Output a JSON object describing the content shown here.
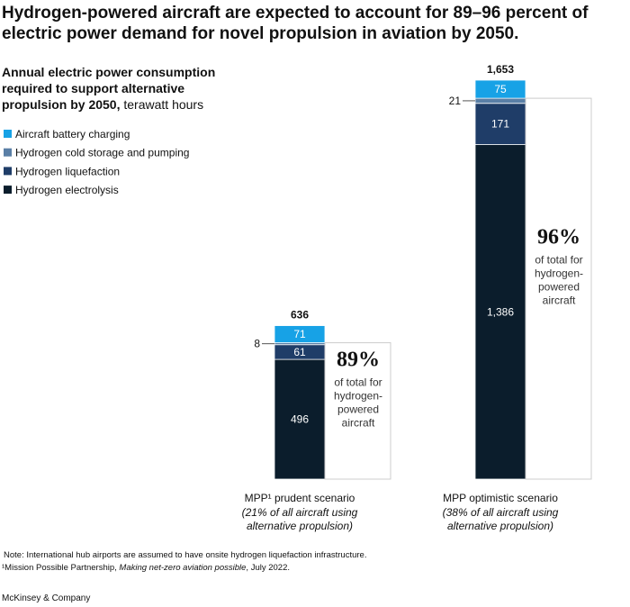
{
  "chart_data": {
    "type": "stacked_bar",
    "title_lines": [
      "Hydrogen-powered aircraft are expected to account for 89–96 percent of",
      "electric power demand for novel propulsion in aviation by 2050."
    ],
    "subtitle_lines": [
      "Annual electric power consumption",
      "required to support alternative",
      "propulsion by 2050,"
    ],
    "unit": " terawatt hours",
    "categories": [
      "MPP¹ prudent scenario",
      "MPP optimistic scenario"
    ],
    "category_notes": [
      [
        "(21% of all aircraft using",
        "alternative propulsion)"
      ],
      [
        "(38% of all aircraft using",
        "alternative propulsion)"
      ]
    ],
    "series": [
      {
        "name": "Hydrogen electrolysis",
        "color": "#0b1d2c",
        "values": [
          496,
          1386
        ],
        "value_labels": [
          "496",
          "1,386"
        ]
      },
      {
        "name": "Hydrogen liquefaction",
        "color": "#1f3d68",
        "values": [
          61,
          171
        ]
      },
      {
        "name": "Hydrogen cold storage and pumping",
        "color": "#5a7fa6",
        "values": [
          8,
          21
        ]
      },
      {
        "name": "Aircraft battery charging",
        "color": "#17a2e6",
        "values": [
          71,
          75
        ]
      }
    ],
    "legend_order": [
      3,
      2,
      1,
      0
    ],
    "totals": [
      636,
      1653
    ],
    "total_labels": [
      "636",
      "1,653"
    ],
    "annotations": [
      {
        "percent": 89,
        "percent_label": "89%",
        "lines": [
          "of total for",
          "hydrogen-",
          "powered",
          "aircraft"
        ]
      },
      {
        "percent": 96,
        "percent_label": "96%",
        "lines": [
          "of total for",
          "hydrogen-",
          "powered",
          "aircraft"
        ]
      }
    ],
    "note": "Note: International hub airports are assumed to have onsite hydrogen liquefaction infrastructure.",
    "source_parts": [
      "¹Mission Possible Partnership, ",
      "Making net-zero aviation possible",
      ", July 2022."
    ],
    "brand": "McKinsey & Company"
  }
}
